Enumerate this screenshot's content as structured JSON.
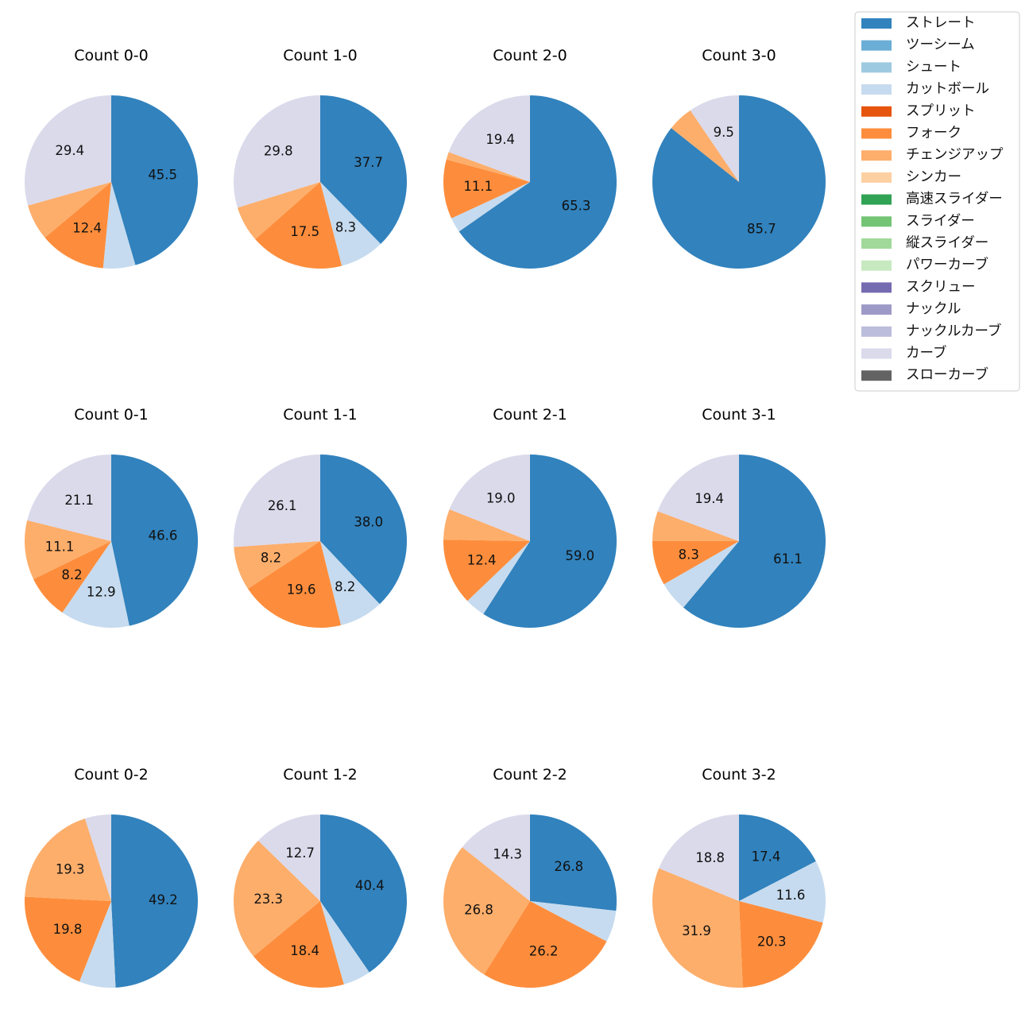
{
  "legend": {
    "placement": "top-right",
    "items": [
      {
        "name": "ストレート",
        "color": "#3182bd"
      },
      {
        "name": "ツーシーム",
        "color": "#6baed6"
      },
      {
        "name": "シュート",
        "color": "#9ecae1"
      },
      {
        "name": "カットボール",
        "color": "#c6dbef"
      },
      {
        "name": "スプリット",
        "color": "#e6550d"
      },
      {
        "name": "フォーク",
        "color": "#fd8d3c"
      },
      {
        "name": "チェンジアップ",
        "color": "#fdae6b"
      },
      {
        "name": "シンカー",
        "color": "#fdd0a2"
      },
      {
        "name": "高速スライダー",
        "color": "#31a354"
      },
      {
        "name": "スライダー",
        "color": "#74c476"
      },
      {
        "name": "縦スライダー",
        "color": "#a1d99b"
      },
      {
        "name": "パワーカーブ",
        "color": "#c7e9c0"
      },
      {
        "name": "スクリュー",
        "color": "#756bb1"
      },
      {
        "name": "ナックル",
        "color": "#9e9ac8"
      },
      {
        "name": "ナックルカーブ",
        "color": "#bcbddc"
      },
      {
        "name": "カーブ",
        "color": "#dadaeb"
      },
      {
        "name": "スローカーブ",
        "color": "#636363"
      }
    ]
  },
  "chart_data": [
    {
      "type": "pie",
      "title": "Count 0-0",
      "slices": [
        {
          "name": "ストレート",
          "value": 45.5,
          "label": "45.5"
        },
        {
          "name": "カットボール",
          "value": 6.0,
          "label": ""
        },
        {
          "name": "フォーク",
          "value": 12.4,
          "label": "12.4"
        },
        {
          "name": "チェンジアップ",
          "value": 6.7,
          "label": ""
        },
        {
          "name": "カーブ",
          "value": 29.4,
          "label": "29.4"
        }
      ]
    },
    {
      "type": "pie",
      "title": "Count 1-0",
      "slices": [
        {
          "name": "ストレート",
          "value": 37.7,
          "label": "37.7"
        },
        {
          "name": "カットボール",
          "value": 8.3,
          "label": "8.3"
        },
        {
          "name": "フォーク",
          "value": 17.5,
          "label": "17.5"
        },
        {
          "name": "チェンジアップ",
          "value": 6.7,
          "label": ""
        },
        {
          "name": "カーブ",
          "value": 29.8,
          "label": "29.8"
        }
      ]
    },
    {
      "type": "pie",
      "title": "Count 2-0",
      "slices": [
        {
          "name": "ストレート",
          "value": 65.3,
          "label": "65.3"
        },
        {
          "name": "カットボール",
          "value": 2.8,
          "label": ""
        },
        {
          "name": "フォーク",
          "value": 11.1,
          "label": "11.1"
        },
        {
          "name": "チェンジアップ",
          "value": 1.4,
          "label": ""
        },
        {
          "name": "カーブ",
          "value": 19.4,
          "label": "19.4"
        }
      ]
    },
    {
      "type": "pie",
      "title": "Count 3-0",
      "slices": [
        {
          "name": "ストレート",
          "value": 85.7,
          "label": "85.7"
        },
        {
          "name": "チェンジアップ",
          "value": 4.8,
          "label": ""
        },
        {
          "name": "カーブ",
          "value": 9.5,
          "label": "9.5"
        }
      ]
    },
    {
      "type": "pie",
      "title": "Count 0-1",
      "slices": [
        {
          "name": "ストレート",
          "value": 46.6,
          "label": "46.6"
        },
        {
          "name": "カットボール",
          "value": 12.9,
          "label": "12.9"
        },
        {
          "name": "フォーク",
          "value": 8.2,
          "label": "8.2"
        },
        {
          "name": "チェンジアップ",
          "value": 11.1,
          "label": "11.1"
        },
        {
          "name": "カーブ",
          "value": 21.1,
          "label": "21.1"
        }
      ]
    },
    {
      "type": "pie",
      "title": "Count 1-1",
      "slices": [
        {
          "name": "ストレート",
          "value": 38.0,
          "label": "38.0"
        },
        {
          "name": "カットボール",
          "value": 8.2,
          "label": "8.2"
        },
        {
          "name": "フォーク",
          "value": 19.6,
          "label": "19.6"
        },
        {
          "name": "チェンジアップ",
          "value": 8.2,
          "label": "8.2"
        },
        {
          "name": "カーブ",
          "value": 26.1,
          "label": "26.1"
        }
      ]
    },
    {
      "type": "pie",
      "title": "Count 2-1",
      "slices": [
        {
          "name": "ストレート",
          "value": 59.0,
          "label": "59.0"
        },
        {
          "name": "カットボール",
          "value": 3.8,
          "label": ""
        },
        {
          "name": "フォーク",
          "value": 12.4,
          "label": "12.4"
        },
        {
          "name": "チェンジアップ",
          "value": 5.7,
          "label": ""
        },
        {
          "name": "カーブ",
          "value": 19.0,
          "label": "19.0"
        }
      ]
    },
    {
      "type": "pie",
      "title": "Count 3-1",
      "slices": [
        {
          "name": "ストレート",
          "value": 61.1,
          "label": "61.1"
        },
        {
          "name": "カットボール",
          "value": 5.6,
          "label": ""
        },
        {
          "name": "フォーク",
          "value": 8.3,
          "label": "8.3"
        },
        {
          "name": "チェンジアップ",
          "value": 5.6,
          "label": ""
        },
        {
          "name": "カーブ",
          "value": 19.4,
          "label": "19.4"
        }
      ]
    },
    {
      "type": "pie",
      "title": "Count 0-2",
      "slices": [
        {
          "name": "ストレート",
          "value": 49.2,
          "label": "49.2"
        },
        {
          "name": "カットボール",
          "value": 6.8,
          "label": ""
        },
        {
          "name": "フォーク",
          "value": 19.8,
          "label": "19.8"
        },
        {
          "name": "チェンジアップ",
          "value": 19.3,
          "label": "19.3"
        },
        {
          "name": "カーブ",
          "value": 4.9,
          "label": ""
        }
      ]
    },
    {
      "type": "pie",
      "title": "Count 1-2",
      "slices": [
        {
          "name": "ストレート",
          "value": 40.4,
          "label": "40.4"
        },
        {
          "name": "カットボール",
          "value": 5.2,
          "label": ""
        },
        {
          "name": "フォーク",
          "value": 18.4,
          "label": "18.4"
        },
        {
          "name": "チェンジアップ",
          "value": 23.3,
          "label": "23.3"
        },
        {
          "name": "カーブ",
          "value": 12.7,
          "label": "12.7"
        }
      ]
    },
    {
      "type": "pie",
      "title": "Count 2-2",
      "slices": [
        {
          "name": "ストレート",
          "value": 26.8,
          "label": "26.8"
        },
        {
          "name": "カットボール",
          "value": 5.9,
          "label": ""
        },
        {
          "name": "フォーク",
          "value": 26.2,
          "label": "26.2"
        },
        {
          "name": "チェンジアップ",
          "value": 26.8,
          "label": "26.8"
        },
        {
          "name": "カーブ",
          "value": 14.3,
          "label": "14.3"
        }
      ]
    },
    {
      "type": "pie",
      "title": "Count 3-2",
      "slices": [
        {
          "name": "ストレート",
          "value": 17.4,
          "label": "17.4"
        },
        {
          "name": "カットボール",
          "value": 11.6,
          "label": "11.6"
        },
        {
          "name": "フォーク",
          "value": 20.3,
          "label": "20.3"
        },
        {
          "name": "チェンジアップ",
          "value": 31.9,
          "label": "31.9"
        },
        {
          "name": "カーブ",
          "value": 18.8,
          "label": "18.8"
        }
      ]
    }
  ]
}
